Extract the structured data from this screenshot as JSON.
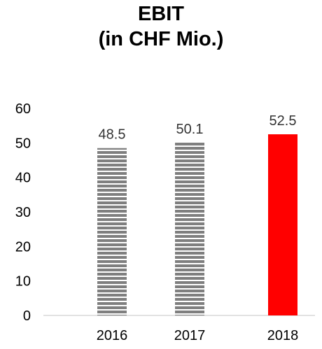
{
  "chart_data": {
    "type": "bar",
    "title_line1": "EBIT",
    "title_line2": "(in CHF Mio.)",
    "categories": [
      "2016",
      "2017",
      "2018"
    ],
    "values": [
      48.5,
      50.1,
      52.5
    ],
    "data_labels": [
      "48.5",
      "50.1",
      "52.5"
    ],
    "ylim": [
      0,
      60
    ],
    "yticks": [
      0,
      10,
      20,
      30,
      40,
      50,
      60
    ],
    "grid": false,
    "bar_styles": [
      "striped",
      "striped",
      "solid"
    ],
    "colors": {
      "striped": "#7f7f7f",
      "highlight": "#ff0000",
      "axis": "#d9d9d9"
    }
  }
}
